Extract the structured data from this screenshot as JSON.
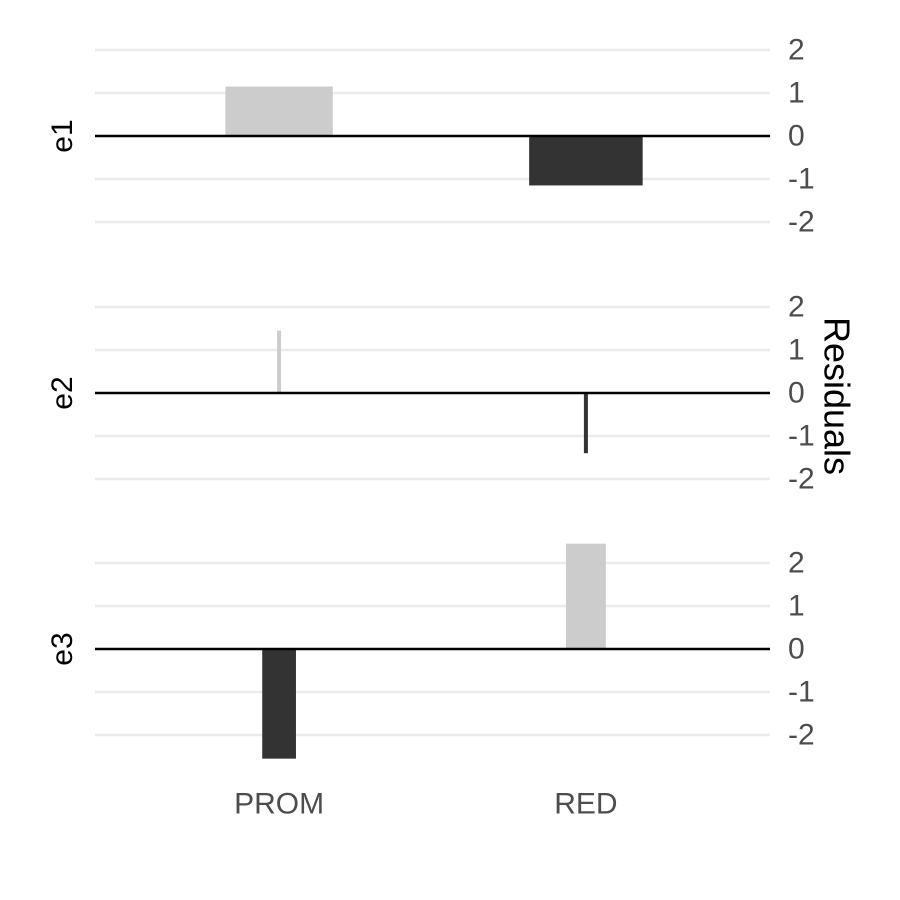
{
  "chart_data": {
    "type": "bar",
    "layout": "faceted-rows",
    "categories": [
      "PROM",
      "RED"
    ],
    "ylabel": "Residuals",
    "ylabel_position": "right",
    "y_tick_position": "right",
    "y_ticks": [
      2,
      1,
      0,
      -1,
      -2
    ],
    "ylim": [
      -2.5,
      2.5
    ],
    "grid": true,
    "colors": {
      "positive": "#cccccc",
      "negative": "#333333",
      "grid": "#ebebeb",
      "zero_line": "#000000"
    },
    "facets": [
      {
        "label": "e1",
        "bars": [
          {
            "category": "PROM",
            "value": 1.15,
            "width": 0.35
          },
          {
            "category": "RED",
            "value": -1.15,
            "width": 0.37
          }
        ]
      },
      {
        "label": "e2",
        "bars": [
          {
            "category": "PROM",
            "value": 1.45,
            "width": 0.012
          },
          {
            "category": "RED",
            "value": -1.4,
            "width": 0.012
          }
        ]
      },
      {
        "label": "e3",
        "bars": [
          {
            "category": "PROM",
            "value": -2.55,
            "width": 0.11
          },
          {
            "category": "RED",
            "value": 2.45,
            "width": 0.13
          }
        ]
      }
    ]
  }
}
